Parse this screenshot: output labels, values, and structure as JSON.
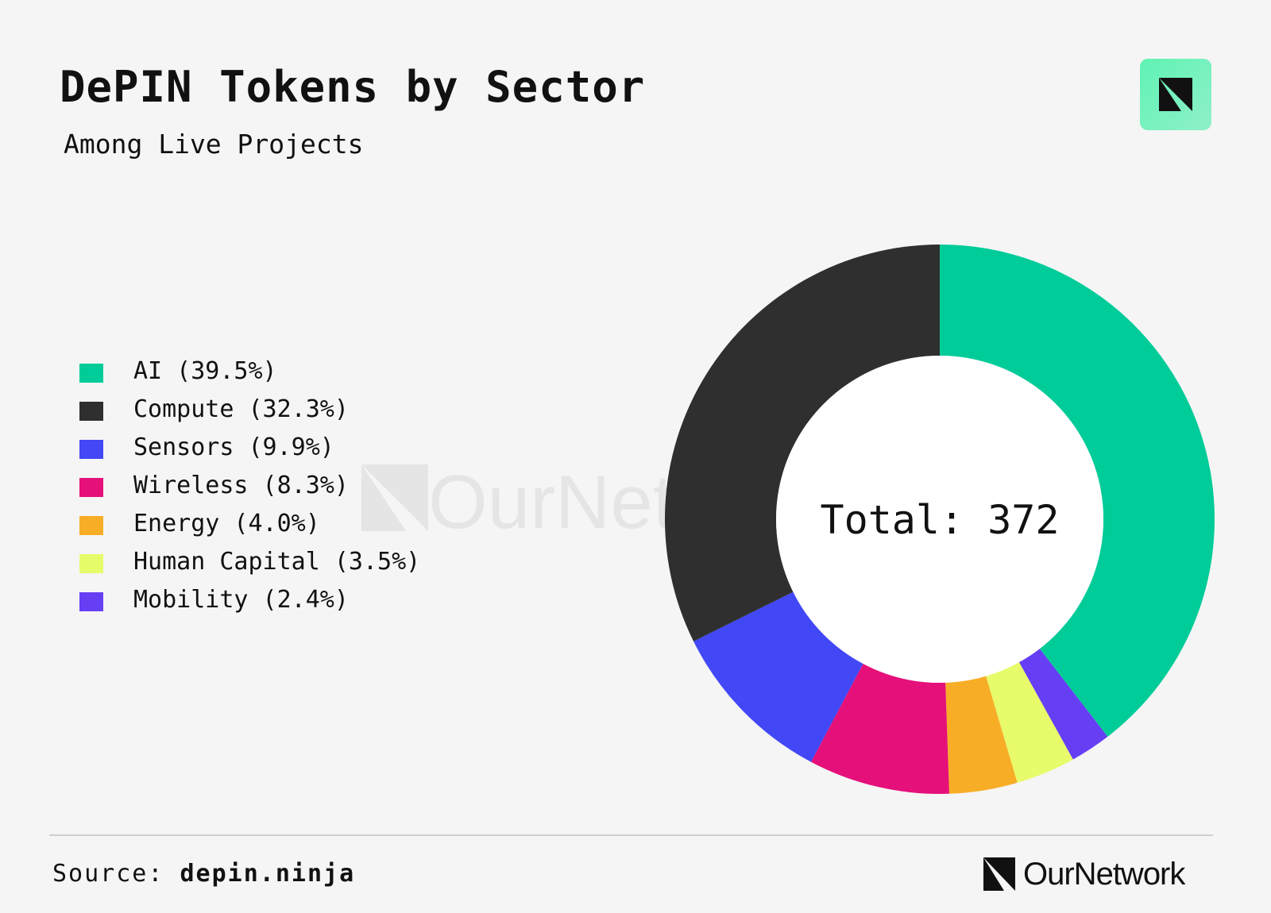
{
  "header": {
    "title": "DePIN Tokens by Sector",
    "subtitle": "Among Live Projects"
  },
  "brand": {
    "logo_icon": "ournetwork-logo-icon",
    "name": "OurNetwork",
    "watermark": "OurNetwork",
    "badge_color": "#6ef2c0"
  },
  "footer": {
    "source_label": "Source:",
    "source_value": "depin.ninja"
  },
  "chart_data": {
    "type": "pie",
    "donut": true,
    "center_label": "Total: 372",
    "legend_position": "left",
    "slices": [
      {
        "label": "AI (39.5%)",
        "value": 39.5,
        "color": "#00cc99"
      },
      {
        "label": "Compute (32.3%)",
        "value": 32.3,
        "color": "#2f2f2f"
      },
      {
        "label": "Sensors (9.9%)",
        "value": 9.9,
        "color": "#4248f5"
      },
      {
        "label": "Wireless (8.3%)",
        "value": 8.3,
        "color": "#e5107a"
      },
      {
        "label": "Energy (4.0%)",
        "value": 4.0,
        "color": "#f8ad27"
      },
      {
        "label": "Human Capital (3.5%)",
        "value": 3.5,
        "color": "#e8fb6a"
      },
      {
        "label": "Mobility (2.4%)",
        "value": 2.4,
        "color": "#663ff5"
      }
    ],
    "draw_order": [
      "AI (39.5%)",
      "Mobility (2.4%)",
      "Human Capital (3.5%)",
      "Energy (4.0%)",
      "Wireless (8.3%)",
      "Sensors (9.9%)",
      "Compute (32.3%)"
    ]
  }
}
